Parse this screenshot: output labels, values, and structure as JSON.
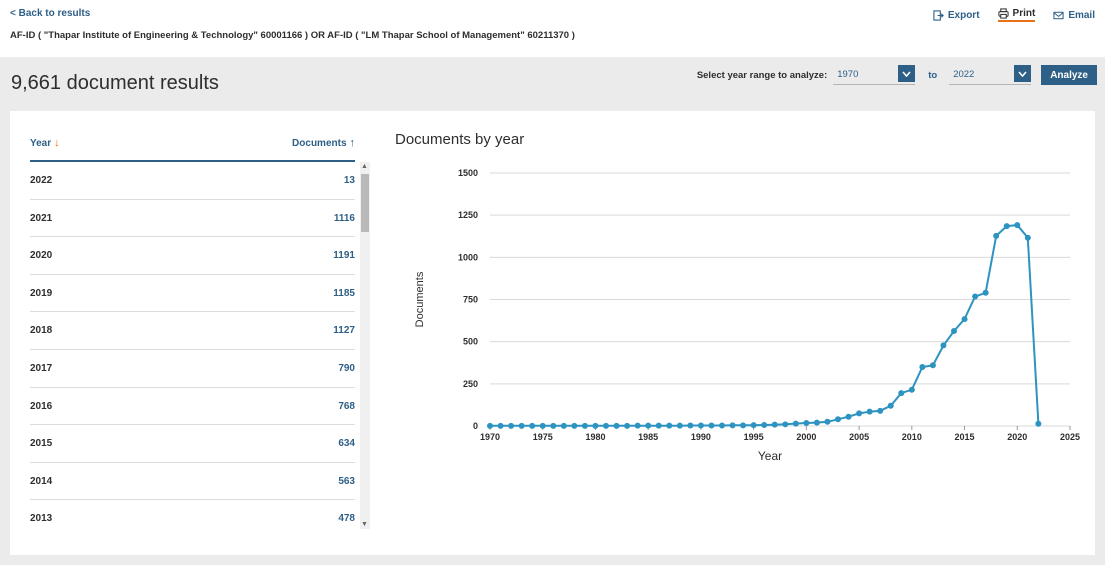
{
  "nav": {
    "back_label": "< Back to results"
  },
  "actions": {
    "export": "Export",
    "print": "Print",
    "email": "Email"
  },
  "query": "AF-ID ( \"Thapar Institute of Engineering & Technology\"   60001166 )  OR  AF-ID ( \"LM Thapar School of Management\"   60211370 )",
  "results_title": "9,661 document results",
  "range": {
    "label": "Select year range to analyze:",
    "from": "1970",
    "to_label": "to",
    "to": "2022",
    "analyze": "Analyze"
  },
  "table": {
    "year_header": "Year",
    "docs_header": "Documents",
    "rows": [
      {
        "year": "2022",
        "count": "13"
      },
      {
        "year": "2021",
        "count": "1116"
      },
      {
        "year": "2020",
        "count": "1191"
      },
      {
        "year": "2019",
        "count": "1185"
      },
      {
        "year": "2018",
        "count": "1127"
      },
      {
        "year": "2017",
        "count": "790"
      },
      {
        "year": "2016",
        "count": "768"
      },
      {
        "year": "2015",
        "count": "634"
      },
      {
        "year": "2014",
        "count": "563"
      },
      {
        "year": "2013",
        "count": "478"
      }
    ]
  },
  "colors": {
    "accent": "#2e5f87",
    "line": "#2d93c0",
    "sort_arrow": "#e9711c",
    "panel": "#ebebeb"
  },
  "chart_data": {
    "type": "line",
    "title": "Documents by year",
    "xlabel": "Year",
    "ylabel": "Documents",
    "xlim": [
      1970,
      2025
    ],
    "ylim": [
      0,
      1500
    ],
    "x_ticks": [
      "1970",
      "1975",
      "1980",
      "1985",
      "1990",
      "1995",
      "2000",
      "2005",
      "2010",
      "2015",
      "2020",
      "2025"
    ],
    "y_ticks": [
      "0",
      "250",
      "500",
      "750",
      "1000",
      "1250",
      "1500"
    ],
    "grid": true,
    "x": [
      1970,
      1971,
      1972,
      1973,
      1974,
      1975,
      1976,
      1977,
      1978,
      1979,
      1980,
      1981,
      1982,
      1983,
      1984,
      1985,
      1986,
      1987,
      1988,
      1989,
      1990,
      1991,
      1992,
      1993,
      1994,
      1995,
      1996,
      1997,
      1998,
      1999,
      2000,
      2001,
      2002,
      2003,
      2004,
      2005,
      2006,
      2007,
      2008,
      2009,
      2010,
      2011,
      2012,
      2013,
      2014,
      2015,
      2016,
      2017,
      2018,
      2019,
      2020,
      2021,
      2022
    ],
    "values": [
      1,
      1,
      1,
      1,
      1,
      1,
      1,
      1,
      1,
      1,
      1,
      1,
      1,
      1,
      2,
      2,
      2,
      2,
      2,
      3,
      3,
      3,
      3,
      4,
      4,
      5,
      6,
      8,
      10,
      14,
      18,
      20,
      25,
      40,
      55,
      75,
      85,
      90,
      120,
      195,
      215,
      350,
      360,
      478,
      563,
      634,
      768,
      790,
      1127,
      1185,
      1191,
      1116,
      13
    ]
  }
}
